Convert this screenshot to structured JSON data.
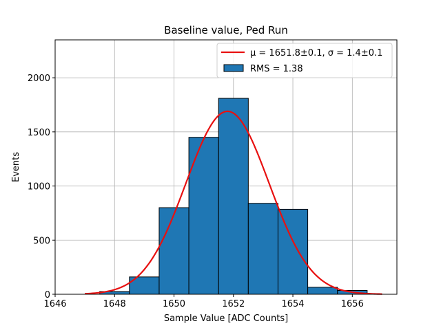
{
  "chart_data": {
    "type": "bar",
    "title": "Baseline value, Ped Run",
    "xlabel": "Sample Value [ADC Counts]",
    "ylabel": "Events",
    "xlim": [
      1646,
      1657.5
    ],
    "ylim": [
      0,
      2350
    ],
    "xticks": [
      1646,
      1648,
      1650,
      1652,
      1654,
      1656
    ],
    "yticks": [
      0,
      500,
      1000,
      1500,
      2000
    ],
    "grid": true,
    "legend_position": "top-right",
    "histogram": {
      "name": "RMS = 1.38",
      "color": "#1f77b4",
      "edge_color": "#000000",
      "bins": [
        {
          "left": 1647.5,
          "right": 1648.5,
          "value": 25
        },
        {
          "left": 1648.5,
          "right": 1649.5,
          "value": 160
        },
        {
          "left": 1649.5,
          "right": 1650.5,
          "value": 800
        },
        {
          "left": 1650.5,
          "right": 1651.5,
          "value": 1450
        },
        {
          "left": 1651.5,
          "right": 1652.5,
          "value": 1810
        },
        {
          "left": 1652.5,
          "right": 1653.5,
          "value": 840
        },
        {
          "left": 1653.5,
          "right": 1654.5,
          "value": 785
        },
        {
          "left": 1654.5,
          "right": 1655.5,
          "value": 65
        },
        {
          "left": 1655.5,
          "right": 1656.5,
          "value": 35
        }
      ]
    },
    "fit": {
      "name": "μ = 1651.8±0.1, σ = 1.4±0.1",
      "color": "#e81010",
      "mu": 1651.8,
      "sigma": 1.4,
      "amplitude": 1690,
      "x_range": [
        1647,
        1657
      ]
    }
  }
}
